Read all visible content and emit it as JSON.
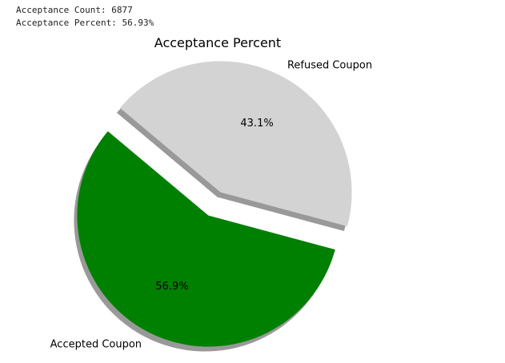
{
  "output": {
    "count_line": "Acceptance Count: 6877",
    "percent_line": "Acceptance Percent: 56.93%"
  },
  "chart_data": {
    "type": "pie",
    "title": "Acceptance Percent",
    "slices": [
      {
        "label": "Accepted Coupon",
        "value": 56.93,
        "pct_label": "56.9%",
        "color": "#008000",
        "exploded": true
      },
      {
        "label": "Refused Coupon",
        "value": 43.07,
        "pct_label": "43.1%",
        "color": "#d3d3d3",
        "exploded": true
      }
    ],
    "shadow": true,
    "legend": "none"
  }
}
